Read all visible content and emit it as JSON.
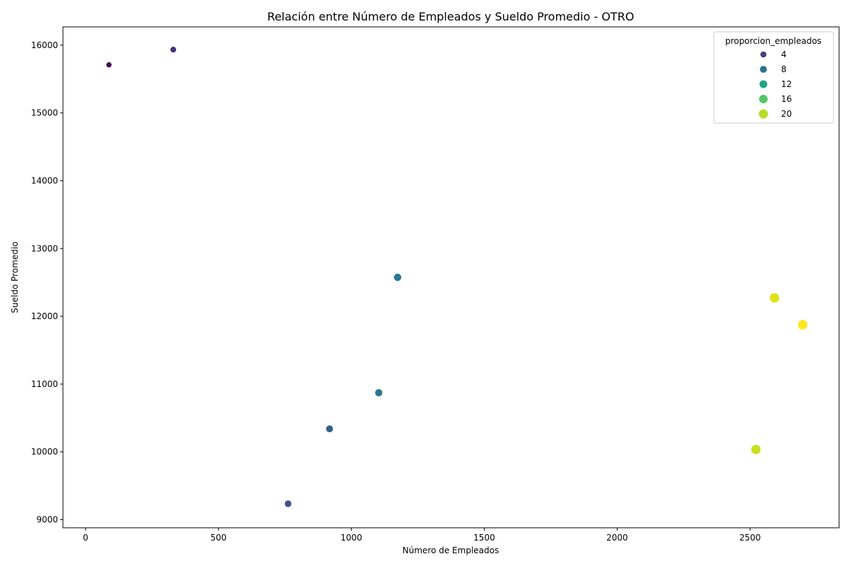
{
  "chart_data": {
    "type": "scatter",
    "title": "Relación entre Número de Empleados y Sueldo Promedio - OTRO",
    "xlabel": "Número de Empleados",
    "ylabel": "Sueldo Promedio",
    "xlim": [
      -85,
      2835
    ],
    "ylim": [
      8880,
      16270
    ],
    "x_ticks": [
      0,
      500,
      1000,
      1500,
      2000,
      2500
    ],
    "y_ticks": [
      9000,
      10000,
      11000,
      12000,
      13000,
      14000,
      15000,
      16000
    ],
    "grid": false,
    "legend": {
      "title": "proporcion_empleados",
      "placement": "top-right",
      "entries": [
        {
          "label": "4",
          "value": 4,
          "color": "#433e85"
        },
        {
          "label": "8",
          "value": 8,
          "color": "#2d708e"
        },
        {
          "label": "12",
          "value": 12,
          "color": "#20a386"
        },
        {
          "label": "16",
          "value": 16,
          "color": "#55c667"
        },
        {
          "label": "20",
          "value": 20,
          "color": "#b8de29"
        }
      ]
    },
    "points": [
      {
        "x": 88,
        "y": 15710,
        "proporcion_empleados": 0.9,
        "color": "#440154"
      },
      {
        "x": 330,
        "y": 15935,
        "proporcion_empleados": 3.0,
        "color": "#472d7b"
      },
      {
        "x": 762,
        "y": 9235,
        "proporcion_empleados": 6.5,
        "color": "#3b528b"
      },
      {
        "x": 918,
        "y": 10340,
        "proporcion_empleados": 8.0,
        "color": "#31608d"
      },
      {
        "x": 1103,
        "y": 10872,
        "proporcion_empleados": 9.5,
        "color": "#2a768e"
      },
      {
        "x": 1174,
        "y": 12575,
        "proporcion_empleados": 10.0,
        "color": "#277a8e"
      },
      {
        "x": 2522,
        "y": 10035,
        "proporcion_empleados": 21.0,
        "color": "#c8e020"
      },
      {
        "x": 2592,
        "y": 12272,
        "proporcion_empleados": 22.0,
        "color": "#dde318"
      },
      {
        "x": 2698,
        "y": 11875,
        "proporcion_empleados": 23.0,
        "color": "#fde725"
      }
    ]
  }
}
